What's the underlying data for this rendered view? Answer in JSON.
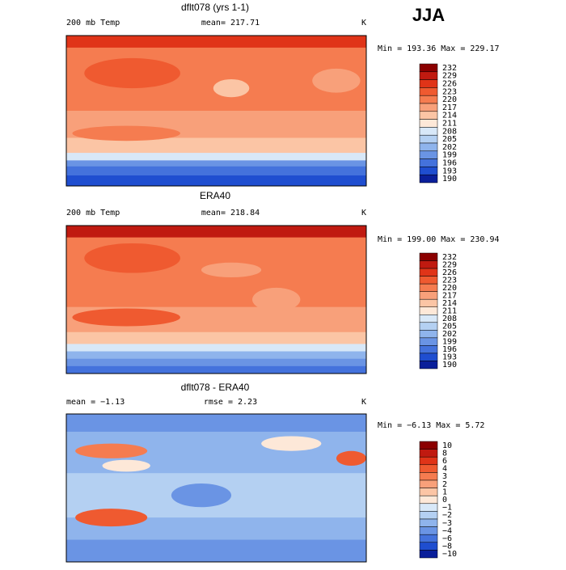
{
  "season": "JJA",
  "panels": [
    {
      "title": "dflt078 (yrs 1-1)",
      "left": "200 mb Temp",
      "center": "mean= 217.71",
      "unit": "K",
      "minmax": "Min = 193.36 Max = 229.17",
      "levels": [
        232,
        229,
        226,
        223,
        220,
        217,
        214,
        211,
        208,
        205,
        202,
        199,
        196,
        193,
        190
      ]
    },
    {
      "title": "ERA40",
      "left": "200 mb Temp",
      "center": "mean= 218.84",
      "unit": "K",
      "minmax": "Min = 199.00 Max = 230.94",
      "levels": [
        232,
        229,
        226,
        223,
        220,
        217,
        214,
        211,
        208,
        205,
        202,
        199,
        196,
        193,
        190
      ]
    },
    {
      "title": "dflt078 - ERA40",
      "left": "mean =   −1.13",
      "center": "rmse =    2.23",
      "unit": "K",
      "minmax": "Min =  −6.13 Max =    5.72",
      "levels": [
        "10",
        "8",
        "6",
        "4",
        "3",
        "2",
        "1",
        "0",
        "−1",
        "−2",
        "−3",
        "−4",
        "−6",
        "−8",
        "−10"
      ]
    }
  ],
  "colors": [
    "#8b0000",
    "#c01a10",
    "#e03418",
    "#ef5a30",
    "#f57c50",
    "#f8a07a",
    "#fbc5a5",
    "#fde8d8",
    "#d8e8f8",
    "#b4d0f2",
    "#8fb4ec",
    "#6a94e4",
    "#4472dc",
    "#1f4ed0",
    "#0a1f9a"
  ]
}
